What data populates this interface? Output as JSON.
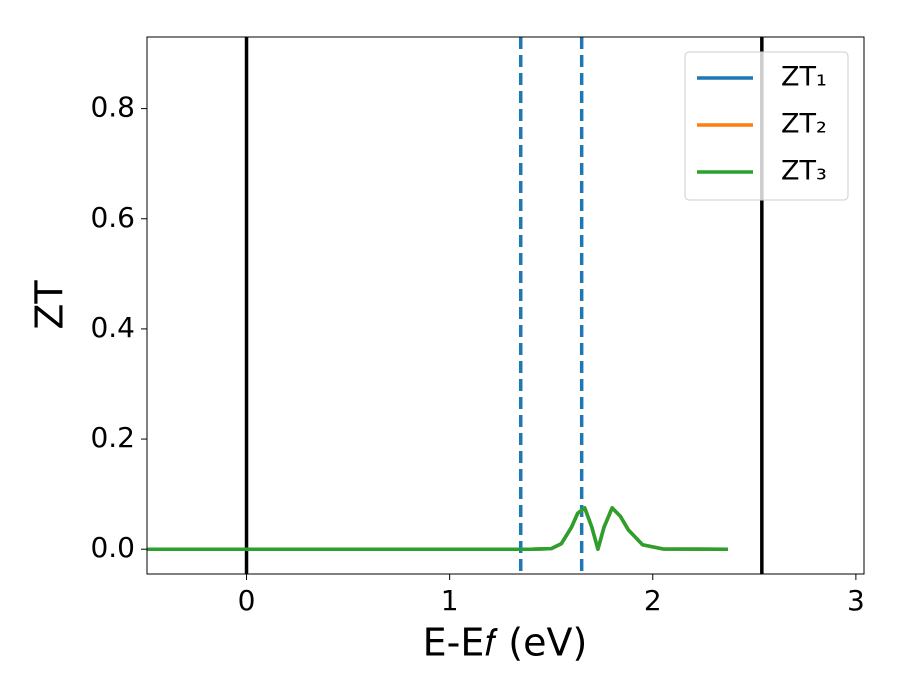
{
  "chart_data": {
    "type": "line",
    "xlabel": "E-E𝑓 (eV)",
    "ylabel": "ZT",
    "x": [
      -0.49,
      1.4,
      1.5,
      1.55,
      1.6,
      1.63,
      1.665,
      1.7,
      1.73,
      1.76,
      1.8,
      1.84,
      1.88,
      1.95,
      2.05,
      2.37
    ],
    "series": [
      {
        "name": "ZT₁",
        "color": "#1f77b4",
        "values": [
          0,
          0,
          0.001,
          0.01,
          0.04,
          0.065,
          0.075,
          0.04,
          0.0,
          0.04,
          0.075,
          0.06,
          0.035,
          0.008,
          0.0005,
          0
        ]
      },
      {
        "name": "ZT₂",
        "color": "#ff7f0e",
        "values": [
          0,
          0,
          0.001,
          0.01,
          0.04,
          0.065,
          0.075,
          0.04,
          0.0,
          0.04,
          0.075,
          0.06,
          0.035,
          0.008,
          0.0005,
          0
        ]
      },
      {
        "name": "ZT₃",
        "color": "#2ca02c",
        "values": [
          0,
          0,
          0.001,
          0.01,
          0.04,
          0.065,
          0.075,
          0.04,
          0.0,
          0.04,
          0.075,
          0.06,
          0.035,
          0.008,
          0.0005,
          0
        ]
      }
    ],
    "vlines": [
      {
        "x": 0,
        "color": "#000000",
        "style": "solid"
      },
      {
        "x": 2.537,
        "color": "#000000",
        "style": "solid"
      },
      {
        "x": 1.35,
        "color": "#1f77b4",
        "style": "dashed"
      },
      {
        "x": 1.65,
        "color": "#1f77b4",
        "style": "dashed"
      }
    ],
    "xlim": [
      -0.49,
      3.04
    ],
    "ylim": [
      -0.045,
      0.93
    ],
    "xticks": [
      0,
      1,
      2,
      3
    ],
    "yticks": [
      {
        "value": 0,
        "label": "0.0"
      },
      0.2,
      0.4,
      0.6,
      0.8
    ],
    "legend": "upper right"
  }
}
